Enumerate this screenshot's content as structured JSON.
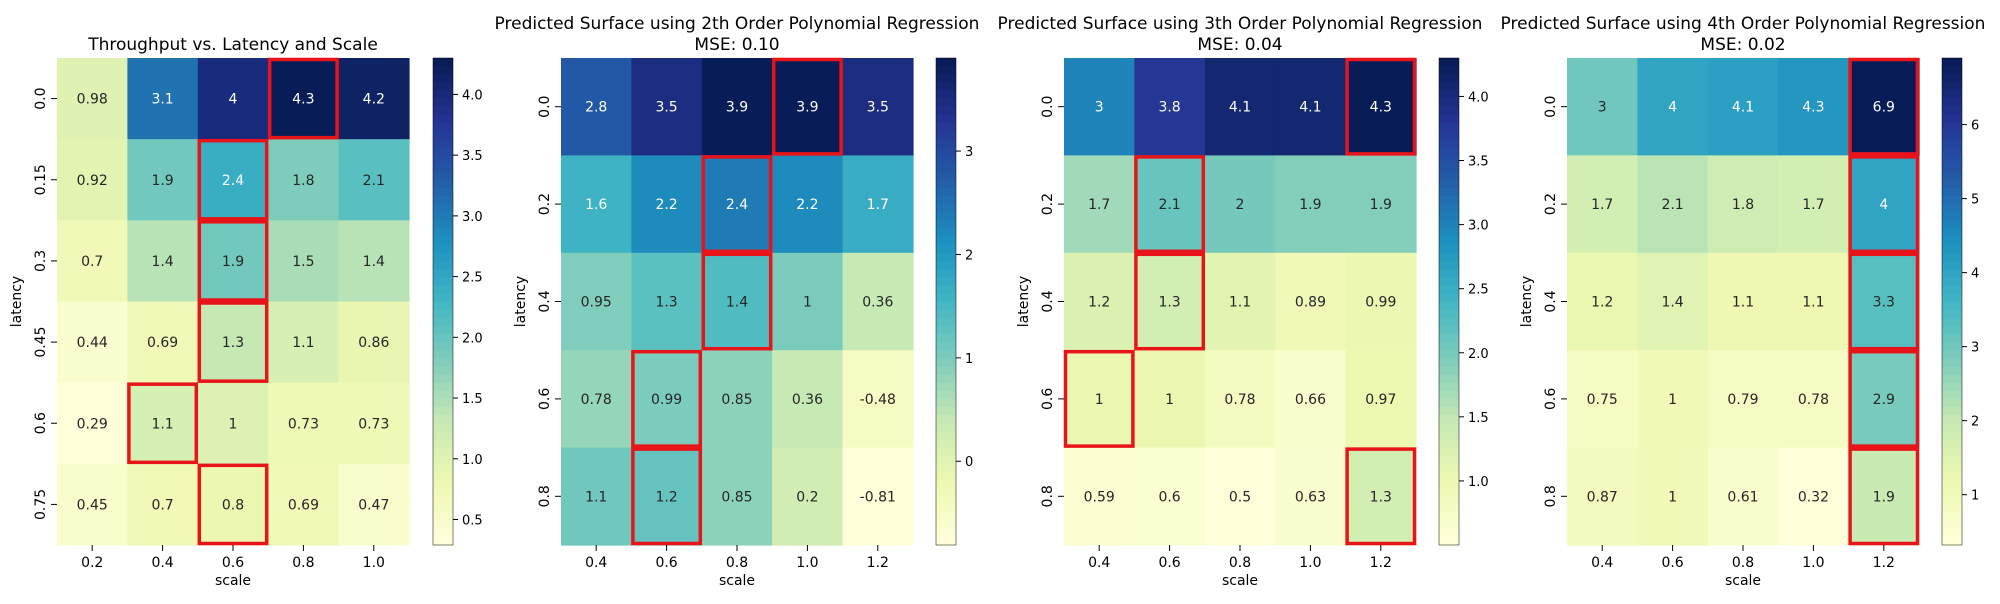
{
  "chart_data": [
    {
      "type": "heatmap",
      "title": "Throughput vs. Latency and Scale",
      "subtitle": "",
      "xlabel": "scale",
      "ylabel": "latency",
      "x_ticks": [
        "0.2",
        "0.4",
        "0.6",
        "0.8",
        "1.0"
      ],
      "y_ticks": [
        "0.0",
        "0.15",
        "0.3",
        "0.45",
        "0.6",
        "0.75"
      ],
      "values": [
        [
          0.98,
          3.1,
          4,
          4.3,
          4.2
        ],
        [
          0.92,
          1.9,
          2.4,
          1.8,
          2.1
        ],
        [
          0.7,
          1.4,
          1.9,
          1.5,
          1.4
        ],
        [
          0.44,
          0.69,
          1.3,
          1.1,
          0.86
        ],
        [
          0.29,
          1.1,
          1,
          0.73,
          0.73
        ],
        [
          0.45,
          0.7,
          0.8,
          0.69,
          0.47
        ]
      ],
      "highlight_max_per_row": [
        3,
        2,
        2,
        2,
        1,
        2
      ],
      "colorbar": {
        "min": 0.29,
        "max": 4.3,
        "ticks": [
          0.5,
          1.0,
          1.5,
          2.0,
          2.5,
          3.0,
          3.5,
          4.0
        ],
        "tick_labels": [
          "0.5",
          "1.0",
          "1.5",
          "2.0",
          "2.5",
          "3.0",
          "3.5",
          "4.0"
        ]
      },
      "colormap": "YlGnBu"
    },
    {
      "type": "heatmap",
      "title": "Predicted Surface using 2th Order Polynomial Regression",
      "subtitle": "MSE: 0.10",
      "xlabel": "scale",
      "ylabel": "latency",
      "x_ticks": [
        "0.4",
        "0.6",
        "0.8",
        "1.0",
        "1.2"
      ],
      "y_ticks": [
        "0.0",
        "0.2",
        "0.4",
        "0.6",
        "0.8"
      ],
      "values": [
        [
          2.8,
          3.5,
          3.9,
          3.9,
          3.5
        ],
        [
          1.6,
          2.2,
          2.4,
          2.2,
          1.7
        ],
        [
          0.95,
          1.3,
          1.4,
          1,
          0.36
        ],
        [
          0.78,
          0.99,
          0.85,
          0.36,
          -0.48
        ],
        [
          1.1,
          1.2,
          0.85,
          0.2,
          -0.81
        ]
      ],
      "highlight_max_per_row": [
        3,
        2,
        2,
        1,
        1
      ],
      "colorbar": {
        "min": -0.81,
        "max": 3.9,
        "ticks": [
          0,
          1,
          2,
          3
        ],
        "tick_labels": [
          "0",
          "1",
          "2",
          "3"
        ]
      },
      "colormap": "YlGnBu"
    },
    {
      "type": "heatmap",
      "title": "Predicted Surface using 3th Order Polynomial Regression",
      "subtitle": "MSE: 0.04",
      "xlabel": "scale",
      "ylabel": "latency",
      "x_ticks": [
        "0.4",
        "0.6",
        "0.8",
        "1.0",
        "1.2"
      ],
      "y_ticks": [
        "0.0",
        "0.2",
        "0.4",
        "0.6",
        "0.8"
      ],
      "values": [
        [
          3,
          3.8,
          4.1,
          4.1,
          4.3
        ],
        [
          1.7,
          2.1,
          2,
          1.9,
          1.9
        ],
        [
          1.2,
          1.3,
          1.1,
          0.89,
          0.99
        ],
        [
          1,
          1,
          0.78,
          0.66,
          0.97
        ],
        [
          0.59,
          0.6,
          0.5,
          0.63,
          1.3
        ]
      ],
      "highlight_max_per_row": [
        4,
        1,
        1,
        0,
        4
      ],
      "colorbar": {
        "min": 0.5,
        "max": 4.3,
        "ticks": [
          1.0,
          1.5,
          2.0,
          2.5,
          3.0,
          3.5,
          4.0
        ],
        "tick_labels": [
          "1.0",
          "1.5",
          "2.0",
          "2.5",
          "3.0",
          "3.5",
          "4.0"
        ]
      },
      "colormap": "YlGnBu"
    },
    {
      "type": "heatmap",
      "title": "Predicted Surface using 4th Order Polynomial Regression",
      "subtitle": "MSE: 0.02",
      "xlabel": "scale",
      "ylabel": "latency",
      "x_ticks": [
        "0.4",
        "0.6",
        "0.8",
        "1.0",
        "1.2"
      ],
      "y_ticks": [
        "0.0",
        "0.2",
        "0.4",
        "0.6",
        "0.8"
      ],
      "values": [
        [
          3,
          4,
          4.1,
          4.3,
          6.9
        ],
        [
          1.7,
          2.1,
          1.8,
          1.7,
          4
        ],
        [
          1.2,
          1.4,
          1.1,
          1.1,
          3.3
        ],
        [
          0.75,
          1,
          0.79,
          0.78,
          2.9
        ],
        [
          0.87,
          1,
          0.61,
          0.32,
          1.9
        ]
      ],
      "highlight_max_per_row": [
        4,
        4,
        4,
        4,
        4
      ],
      "colorbar": {
        "min": 0.32,
        "max": 6.9,
        "ticks": [
          1,
          2,
          3,
          4,
          5,
          6
        ],
        "tick_labels": [
          "1",
          "2",
          "3",
          "4",
          "5",
          "6"
        ]
      },
      "colormap": "YlGnBu"
    }
  ],
  "colors": {
    "highlight": "#e8141a",
    "text_light": "#ffffff",
    "text_dark": "#262626",
    "axis": "#000000"
  }
}
